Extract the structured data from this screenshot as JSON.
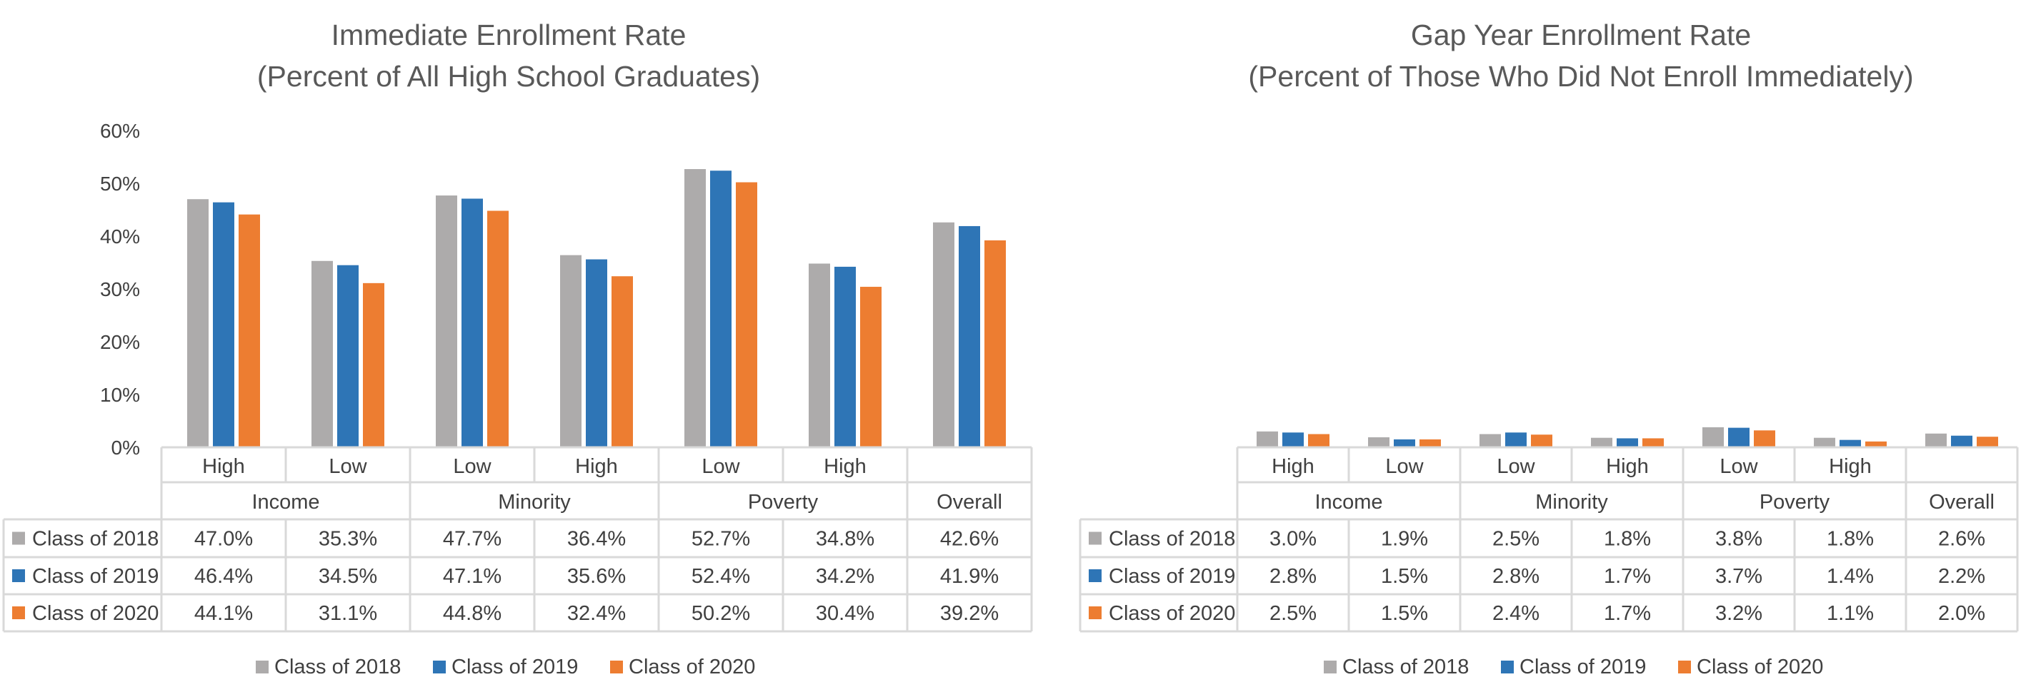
{
  "colors": {
    "Class of 2018": "#ADABAB",
    "Class of 2019": "#2E75B6",
    "Class of 2020": "#ED7D31"
  },
  "chart_data": [
    {
      "type": "bar",
      "title": "Immediate Enrollment Rate",
      "subtitle": "(Percent of All High School Graduates)",
      "ylim": [
        0,
        60
      ],
      "yticks": [
        "0%",
        "10%",
        "20%",
        "30%",
        "40%",
        "50%",
        "60%"
      ],
      "show_yaxis": true,
      "groups": [
        "Income",
        "Minority",
        "Poverty",
        "Overall"
      ],
      "categories": [
        "High",
        "Low",
        "Low",
        "High",
        "Low",
        "High",
        ""
      ],
      "category_groups": [
        0,
        0,
        1,
        1,
        2,
        2,
        3
      ],
      "series": [
        {
          "name": "Class of 2018",
          "values": [
            47.0,
            35.3,
            47.7,
            36.4,
            52.7,
            34.8,
            42.6
          ],
          "labels": [
            "47.0%",
            "35.3%",
            "47.7%",
            "36.4%",
            "52.7%",
            "34.8%",
            "42.6%"
          ]
        },
        {
          "name": "Class of 2019",
          "values": [
            46.4,
            34.5,
            47.1,
            35.6,
            52.4,
            34.2,
            41.9
          ],
          "labels": [
            "46.4%",
            "34.5%",
            "47.1%",
            "35.6%",
            "52.4%",
            "34.2%",
            "41.9%"
          ]
        },
        {
          "name": "Class of 2020",
          "values": [
            44.1,
            31.1,
            44.8,
            32.4,
            50.2,
            30.4,
            39.2
          ],
          "labels": [
            "44.1%",
            "31.1%",
            "44.8%",
            "32.4%",
            "50.2%",
            "30.4%",
            "39.2%"
          ]
        }
      ],
      "legend": [
        "Class of 2018",
        "Class of 2019",
        "Class of 2020"
      ]
    },
    {
      "type": "bar",
      "title": "Gap Year Enrollment Rate",
      "subtitle": "(Percent of Those Who Did Not Enroll Immediately)",
      "ylim": [
        0,
        60
      ],
      "yticks": [],
      "show_yaxis": false,
      "groups": [
        "Income",
        "Minority",
        "Poverty",
        "Overall"
      ],
      "categories": [
        "High",
        "Low",
        "Low",
        "High",
        "Low",
        "High",
        ""
      ],
      "category_groups": [
        0,
        0,
        1,
        1,
        2,
        2,
        3
      ],
      "series": [
        {
          "name": "Class of 2018",
          "values": [
            3.0,
            1.9,
            2.5,
            1.8,
            3.8,
            1.8,
            2.6
          ],
          "labels": [
            "3.0%",
            "1.9%",
            "2.5%",
            "1.8%",
            "3.8%",
            "1.8%",
            "2.6%"
          ]
        },
        {
          "name": "Class of 2019",
          "values": [
            2.8,
            1.5,
            2.8,
            1.7,
            3.7,
            1.4,
            2.2
          ],
          "labels": [
            "2.8%",
            "1.5%",
            "2.8%",
            "1.7%",
            "3.7%",
            "1.4%",
            "2.2%"
          ]
        },
        {
          "name": "Class of 2020",
          "values": [
            2.5,
            1.5,
            2.4,
            1.7,
            3.2,
            1.1,
            2.0
          ],
          "labels": [
            "2.5%",
            "1.5%",
            "2.4%",
            "1.7%",
            "3.2%",
            "1.1%",
            "2.0%"
          ]
        }
      ],
      "legend": [
        "Class of 2018",
        "Class of 2019",
        "Class of 2020"
      ]
    }
  ]
}
